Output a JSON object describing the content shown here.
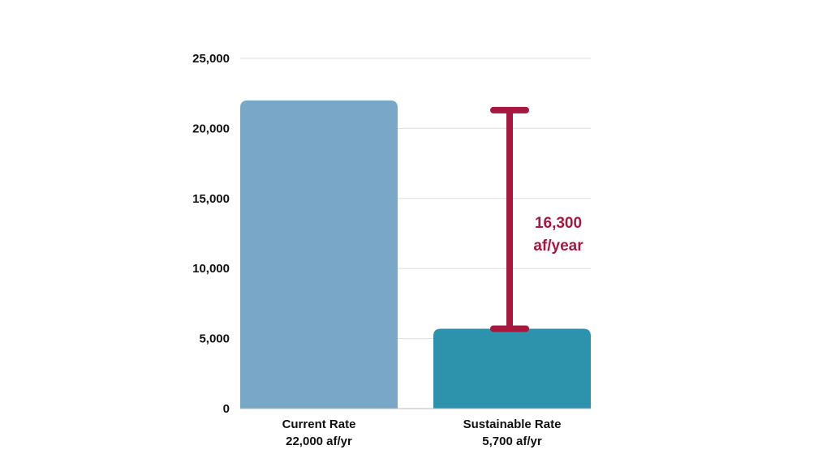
{
  "chart_data": {
    "type": "bar",
    "categories": [
      "Current Rate",
      "Sustainable Rate"
    ],
    "category_sublabels": [
      "22,000 af/yr",
      "5,700 af/yr"
    ],
    "values": [
      22000,
      5700
    ],
    "bar_colors": [
      "#79a7c7",
      "#2d93ad"
    ],
    "ylim": [
      0,
      25000
    ],
    "yticks": [
      0,
      5000,
      10000,
      15000,
      20000,
      25000
    ],
    "ytick_labels": [
      "0",
      "5,000",
      "10,000",
      "15,000",
      "20,000",
      "25,000"
    ],
    "grid": true,
    "annotation": {
      "type": "range-bracket",
      "from": 5700,
      "to": 21300,
      "label_lines": [
        "16,300",
        "af/year"
      ],
      "color": "#a8173f"
    }
  }
}
